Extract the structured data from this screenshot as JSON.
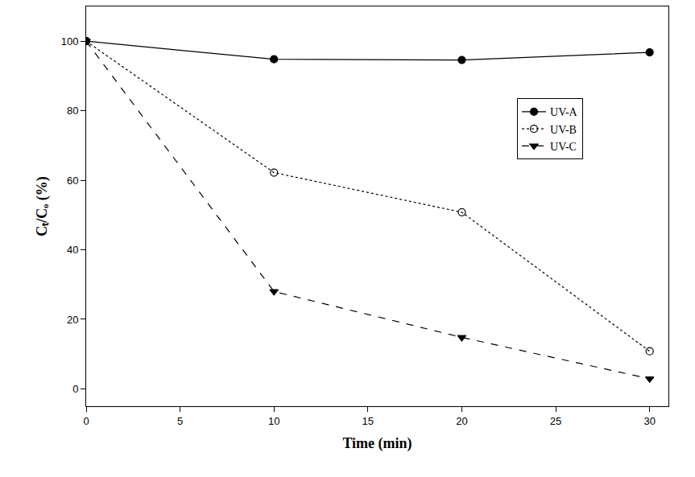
{
  "chart_data": {
    "type": "line",
    "x_label": "Time (min)",
    "y_label": "Cₜ/Cₒ (%)",
    "x": [
      0,
      10,
      20,
      30
    ],
    "series": [
      {
        "name": "UV-A",
        "color": "#000000",
        "marker": "filled-circle",
        "line_style": "solid",
        "values": [
          100,
          94.8,
          94.6,
          96.8
        ]
      },
      {
        "name": "UV-B",
        "color": "#000000",
        "marker": "open-circle",
        "line_style": "dotted",
        "values": [
          100,
          62.2,
          50.8,
          10.8
        ]
      },
      {
        "name": "UV-C",
        "color": "#000000",
        "marker": "triangle-down",
        "line_style": "dashed",
        "values": [
          100,
          28,
          14.8,
          2.9
        ]
      }
    ],
    "xlim": [
      0,
      31
    ],
    "xticks": [
      0,
      5,
      10,
      15,
      20,
      25,
      30
    ],
    "ylim": [
      -5,
      110
    ],
    "yticks": [
      0,
      20,
      40,
      60,
      80,
      100
    ],
    "grid": false,
    "legend": "upper right"
  }
}
